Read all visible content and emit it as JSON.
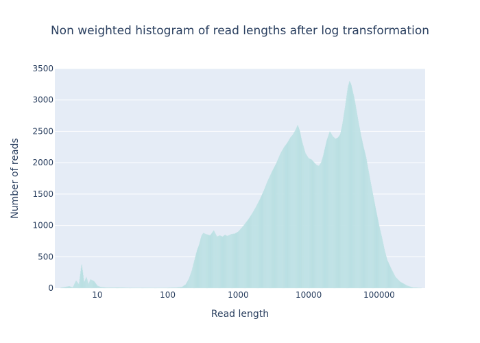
{
  "chart_data": {
    "type": "bar",
    "title": "Non weighted histogram of read lengths after log transformation",
    "xlabel": "Read length",
    "ylabel": "Number of reads",
    "x_scale": "log",
    "xlim": [
      2.5,
      450000
    ],
    "ylim": [
      0,
      3500
    ],
    "x_tick_values": [
      10,
      100,
      1000,
      10000,
      100000
    ],
    "x_tick_labels": [
      "10",
      "100",
      "1000",
      "10000",
      "100000"
    ],
    "y_tick_values": [
      0,
      500,
      1000,
      1500,
      2000,
      2500,
      3000,
      3500
    ],
    "y_tick_labels": [
      "0",
      "500",
      "1000",
      "1500",
      "2000",
      "2500",
      "3000",
      "3500"
    ],
    "grid": true,
    "legend": "none",
    "bar_color": "#b3dce0",
    "plot_bg_color": "#e5ecf6",
    "text_color": "#2a3f5f",
    "points": [
      [
        3,
        5
      ],
      [
        4,
        30
      ],
      [
        4.5,
        10
      ],
      [
        5,
        120
      ],
      [
        5.5,
        60
      ],
      [
        6,
        390
      ],
      [
        6.5,
        90
      ],
      [
        7,
        180
      ],
      [
        7.5,
        60
      ],
      [
        8,
        140
      ],
      [
        9,
        110
      ],
      [
        10,
        40
      ],
      [
        11,
        20
      ],
      [
        13,
        10
      ],
      [
        16,
        8
      ],
      [
        20,
        10
      ],
      [
        25,
        6
      ],
      [
        30,
        5
      ],
      [
        40,
        5
      ],
      [
        50,
        5
      ],
      [
        70,
        4
      ],
      [
        100,
        5
      ],
      [
        130,
        8
      ],
      [
        160,
        20
      ],
      [
        180,
        60
      ],
      [
        200,
        150
      ],
      [
        220,
        280
      ],
      [
        240,
        450
      ],
      [
        260,
        600
      ],
      [
        280,
        700
      ],
      [
        300,
        830
      ],
      [
        320,
        880
      ],
      [
        350,
        860
      ],
      [
        400,
        840
      ],
      [
        450,
        920
      ],
      [
        500,
        820
      ],
      [
        550,
        840
      ],
      [
        600,
        820
      ],
      [
        650,
        850
      ],
      [
        700,
        830
      ],
      [
        800,
        860
      ],
      [
        900,
        870
      ],
      [
        1000,
        900
      ],
      [
        1100,
        950
      ],
      [
        1200,
        1000
      ],
      [
        1400,
        1100
      ],
      [
        1600,
        1200
      ],
      [
        1800,
        1300
      ],
      [
        2000,
        1400
      ],
      [
        2300,
        1550
      ],
      [
        2600,
        1700
      ],
      [
        3000,
        1850
      ],
      [
        3500,
        2000
      ],
      [
        4000,
        2150
      ],
      [
        4500,
        2250
      ],
      [
        5000,
        2320
      ],
      [
        5500,
        2400
      ],
      [
        6000,
        2450
      ],
      [
        6500,
        2520
      ],
      [
        7000,
        2600
      ],
      [
        7500,
        2500
      ],
      [
        8000,
        2350
      ],
      [
        9000,
        2150
      ],
      [
        10000,
        2070
      ],
      [
        11000,
        2050
      ],
      [
        12000,
        2000
      ],
      [
        13000,
        1960
      ],
      [
        14000,
        1950
      ],
      [
        15000,
        2000
      ],
      [
        16000,
        2100
      ],
      [
        18000,
        2350
      ],
      [
        20000,
        2500
      ],
      [
        22000,
        2420
      ],
      [
        24000,
        2380
      ],
      [
        26000,
        2400
      ],
      [
        28000,
        2450
      ],
      [
        30000,
        2600
      ],
      [
        33000,
        2900
      ],
      [
        36000,
        3200
      ],
      [
        38000,
        3300
      ],
      [
        40000,
        3250
      ],
      [
        42000,
        3150
      ],
      [
        45000,
        3000
      ],
      [
        50000,
        2700
      ],
      [
        55000,
        2450
      ],
      [
        60000,
        2250
      ],
      [
        65000,
        2100
      ],
      [
        70000,
        1900
      ],
      [
        80000,
        1550
      ],
      [
        90000,
        1250
      ],
      [
        100000,
        1000
      ],
      [
        110000,
        800
      ],
      [
        120000,
        600
      ],
      [
        130000,
        450
      ],
      [
        150000,
        300
      ],
      [
        170000,
        180
      ],
      [
        200000,
        100
      ],
      [
        250000,
        40
      ],
      [
        300000,
        10
      ],
      [
        400000,
        2
      ]
    ]
  }
}
